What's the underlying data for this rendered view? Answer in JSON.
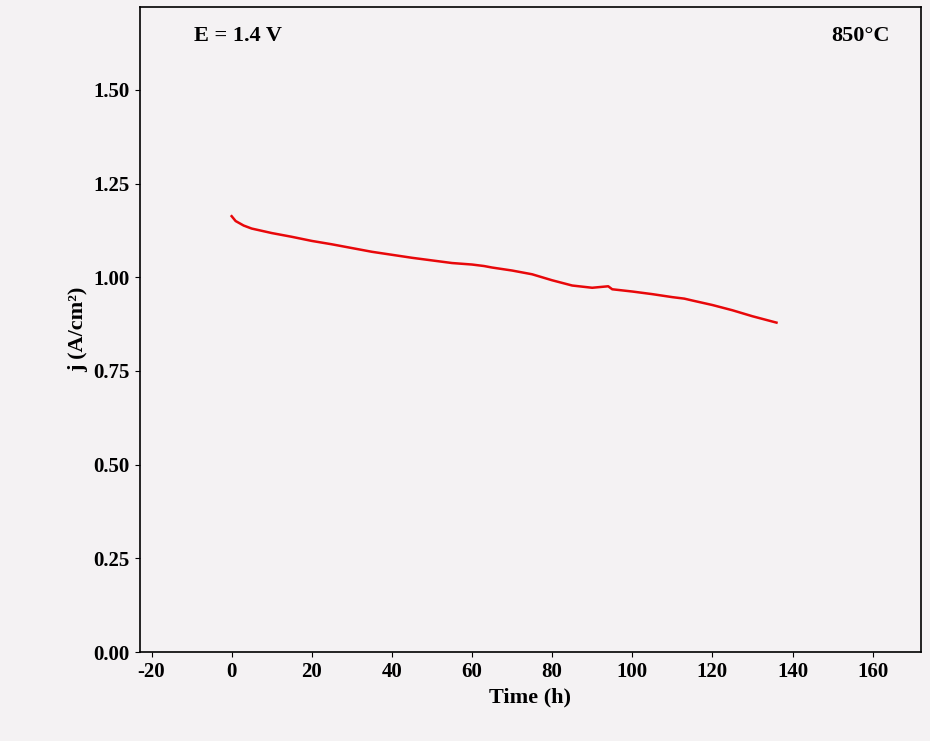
{
  "chart_data": {
    "type": "line",
    "x_label": "Time (h)",
    "y_label": "j (A/cm²)",
    "annotations": [
      "E = 1.4 V",
      "850°C"
    ],
    "x": [
      0,
      1,
      3,
      5,
      10,
      15,
      20,
      25,
      30,
      35,
      40,
      45,
      50,
      55,
      60,
      63,
      65,
      70,
      75,
      80,
      85,
      90,
      94,
      95,
      100,
      105,
      110,
      113,
      115,
      120,
      125,
      130,
      136
    ],
    "values": [
      1.163,
      1.15,
      1.138,
      1.13,
      1.118,
      1.108,
      1.097,
      1.088,
      1.078,
      1.068,
      1.06,
      1.052,
      1.045,
      1.038,
      1.034,
      1.03,
      1.026,
      1.018,
      1.008,
      0.992,
      0.978,
      0.972,
      0.976,
      0.968,
      0.962,
      0.955,
      0.947,
      0.943,
      0.938,
      0.926,
      0.912,
      0.896,
      0.879
    ],
    "color": "#e8080a",
    "xlim": [
      -23,
      172
    ],
    "xticks": [
      -20,
      0,
      20,
      40,
      60,
      80,
      100,
      120,
      140,
      160
    ],
    "ylim": [
      0,
      1.72
    ],
    "yticks": [
      {
        "value": 0,
        "label": "0.00"
      },
      0.25,
      {
        "value": 0.5,
        "label": "0.50"
      },
      0.75,
      {
        "value": 1,
        "label": "1.00"
      },
      1.25,
      {
        "value": 1.5,
        "label": "1.50"
      }
    ],
    "grid": false
  }
}
